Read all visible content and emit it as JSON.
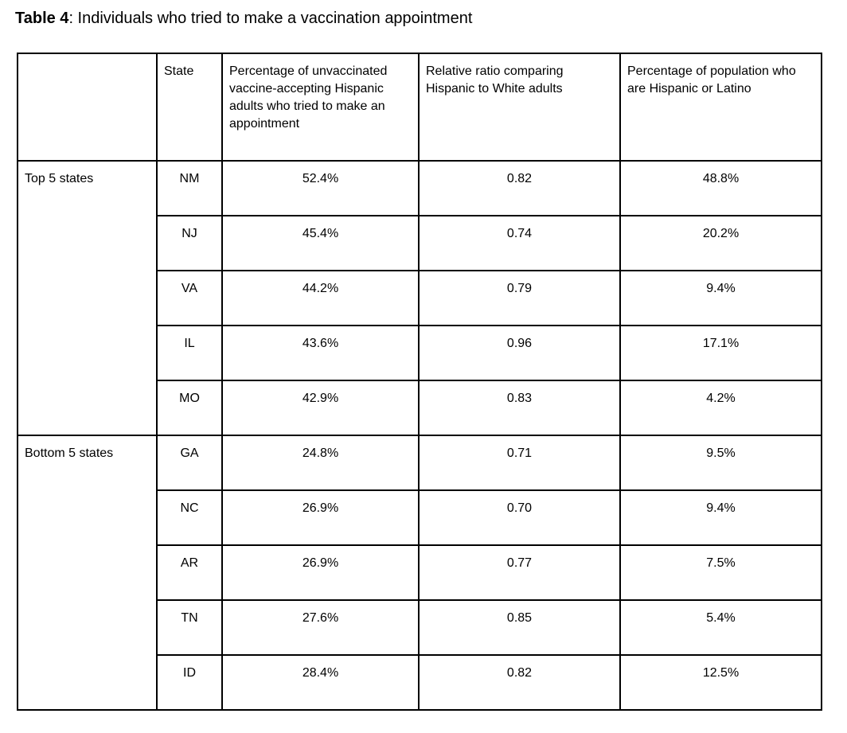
{
  "caption": {
    "label": "Table 4",
    "text": ": Individuals who tried to make a vaccination appointment"
  },
  "table": {
    "headers": {
      "group": "",
      "state": "State",
      "pct_tried": "Percentage of unvaccinated vaccine-accepting Hispanic adults who tried to make an appointment",
      "rel_ratio": "Relative ratio comparing Hispanic to White adults",
      "pct_pop": "Percentage of population who are Hispanic or Latino"
    },
    "groups": [
      {
        "label": "Top 5 states",
        "rows": [
          {
            "state": "NM",
            "pct_tried": "52.4%",
            "rel_ratio": "0.82",
            "pct_pop": "48.8%"
          },
          {
            "state": "NJ",
            "pct_tried": "45.4%",
            "rel_ratio": "0.74",
            "pct_pop": "20.2%"
          },
          {
            "state": "VA",
            "pct_tried": "44.2%",
            "rel_ratio": "0.79",
            "pct_pop": "9.4%"
          },
          {
            "state": "IL",
            "pct_tried": "43.6%",
            "rel_ratio": "0.96",
            "pct_pop": "17.1%"
          },
          {
            "state": "MO",
            "pct_tried": "42.9%",
            "rel_ratio": "0.83",
            "pct_pop": "4.2%"
          }
        ]
      },
      {
        "label": "Bottom 5 states",
        "rows": [
          {
            "state": "GA",
            "pct_tried": "24.8%",
            "rel_ratio": "0.71",
            "pct_pop": "9.5%"
          },
          {
            "state": "NC",
            "pct_tried": "26.9%",
            "rel_ratio": "0.70",
            "pct_pop": "9.4%"
          },
          {
            "state": "AR",
            "pct_tried": "26.9%",
            "rel_ratio": "0.77",
            "pct_pop": "7.5%"
          },
          {
            "state": "TN",
            "pct_tried": "27.6%",
            "rel_ratio": "0.85",
            "pct_pop": "5.4%"
          },
          {
            "state": "ID",
            "pct_tried": "28.4%",
            "rel_ratio": "0.82",
            "pct_pop": "12.5%"
          }
        ]
      }
    ]
  }
}
